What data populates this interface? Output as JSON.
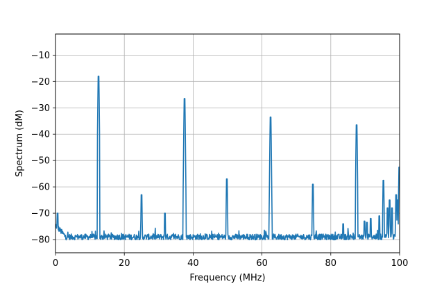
{
  "chart_data": {
    "type": "line",
    "title": "",
    "xlabel": "Frequency (MHz)",
    "ylabel": "Spectrum (dM)",
    "xlim": [
      0,
      100
    ],
    "ylim": [
      -85,
      -2
    ],
    "grid": true,
    "xticks": [
      0,
      20,
      40,
      60,
      80,
      100
    ],
    "yticks": [
      -80,
      -70,
      -60,
      -50,
      -40,
      -30,
      -20,
      -10
    ],
    "xtick_labels": [
      "0",
      "20",
      "40",
      "60",
      "80",
      "100"
    ],
    "ytick_labels": [
      "−80",
      "−70",
      "−60",
      "−50",
      "−40",
      "−30",
      "−20",
      "−10"
    ],
    "line_color": "#1f77b4",
    "grid_color": "#b0b0b0",
    "noise_floor": -79,
    "series": [
      {
        "peaks": [
          {
            "x": 0.6,
            "y": -70
          },
          {
            "x": 12.5,
            "y": -18
          },
          {
            "x": 25.0,
            "y": -63
          },
          {
            "x": 31.8,
            "y": -70
          },
          {
            "x": 37.5,
            "y": -26.5
          },
          {
            "x": 49.8,
            "y": -57
          },
          {
            "x": 62.5,
            "y": -33.5
          },
          {
            "x": 74.8,
            "y": -59
          },
          {
            "x": 83.6,
            "y": -74
          },
          {
            "x": 87.5,
            "y": -36.5
          },
          {
            "x": 89.8,
            "y": -73
          },
          {
            "x": 90.5,
            "y": -73.5
          },
          {
            "x": 91.6,
            "y": -72
          },
          {
            "x": 94.1,
            "y": -71
          },
          {
            "x": 95.3,
            "y": -57.5
          },
          {
            "x": 96.5,
            "y": -68
          },
          {
            "x": 97.1,
            "y": -65
          },
          {
            "x": 97.8,
            "y": -68
          },
          {
            "x": 99.0,
            "y": -63
          },
          {
            "x": 99.4,
            "y": -65
          },
          {
            "x": 99.9,
            "y": -52.5
          }
        ]
      }
    ]
  }
}
